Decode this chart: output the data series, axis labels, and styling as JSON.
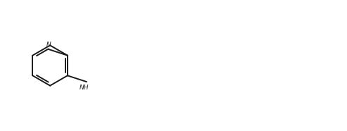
{
  "background_color": "#ffffff",
  "line_color": "#1a1a1a",
  "line_width": 1.4,
  "figsize": [
    4.93,
    1.86
  ],
  "dpi": 100,
  "xlim": [
    0,
    10.5
  ],
  "ylim": [
    0,
    4.0
  ],
  "font_size": 6.5
}
